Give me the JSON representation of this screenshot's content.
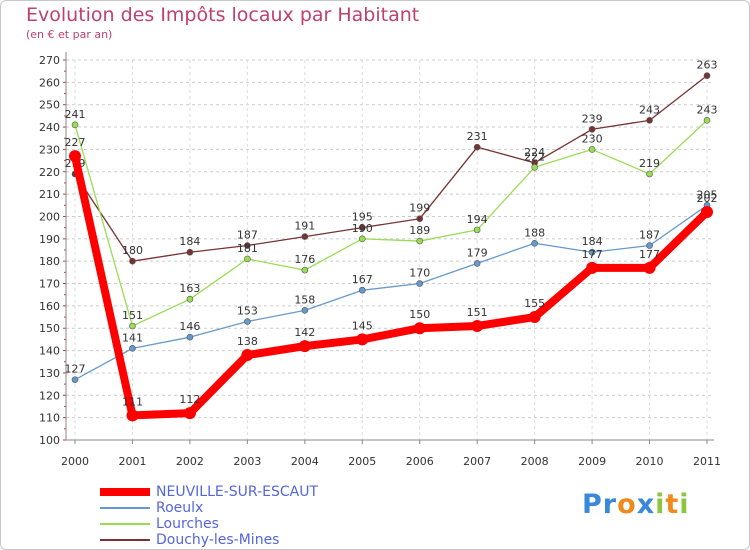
{
  "header": {
    "title": "Evolution des Impôts locaux par Habitant",
    "subtitle": "(en € et par an)"
  },
  "logo": {
    "text": "Proxiti",
    "letters": [
      {
        "ch": "P",
        "color": "#3a88d8"
      },
      {
        "ch": "r",
        "color": "#3a88d8"
      },
      {
        "ch": "o",
        "color": "#f08a1c"
      },
      {
        "ch": "x",
        "color": "#3a88d8"
      },
      {
        "ch": "i",
        "color": "#8cc63f"
      },
      {
        "ch": "t",
        "color": "#f08a1c"
      },
      {
        "ch": "i",
        "color": "#8cc63f"
      }
    ]
  },
  "chart_data": {
    "type": "line",
    "title": "Evolution des Impôts locaux par Habitant",
    "subtitle": "(en € et par an)",
    "xlabel": "",
    "ylabel": "",
    "x": [
      "2000",
      "2001",
      "2002",
      "2003",
      "2004",
      "2005",
      "2006",
      "2007",
      "2008",
      "2009",
      "2010",
      "2011"
    ],
    "ylim": [
      100,
      270
    ],
    "ytick_step": 10,
    "grid": "horizontal-dashed",
    "legend_position": "bottom-left",
    "series": [
      {
        "name": "NEUVILLE-SUR-ESCAUT",
        "color": "#ff0000",
        "emphasis": true,
        "values": [
          227,
          111,
          112,
          138,
          142,
          145,
          150,
          151,
          155,
          177,
          177,
          202
        ],
        "labels": [
          "227",
          "111",
          "112",
          "138",
          "142",
          "145",
          "150",
          "151",
          "155",
          "177",
          "177",
          "202"
        ]
      },
      {
        "name": "Roeulx",
        "color": "#6699cc",
        "emphasis": false,
        "values": [
          127,
          141,
          146,
          153,
          158,
          167,
          170,
          179,
          188,
          184,
          187,
          205
        ],
        "labels": [
          "127",
          "141",
          "146",
          "153",
          "158",
          "167",
          "170",
          "179",
          "188",
          "184",
          "187",
          "205"
        ]
      },
      {
        "name": "Lourches",
        "color": "#99dd55",
        "emphasis": false,
        "values": [
          241,
          151,
          163,
          181,
          176,
          190,
          189,
          194,
          222,
          230,
          219,
          243
        ],
        "labels": [
          "241",
          "151",
          "163",
          "181",
          "176",
          "190",
          "189",
          "194",
          "222",
          "230",
          "219",
          "243"
        ]
      },
      {
        "name": "Douchy-les-Mines",
        "color": "#773333",
        "emphasis": false,
        "values": [
          219,
          180,
          184,
          187,
          191,
          195,
          199,
          231,
          224,
          239,
          243,
          263
        ],
        "labels": [
          "219",
          "180",
          "184",
          "187",
          "191",
          "195",
          "199",
          "231",
          "224",
          "239",
          "243",
          "263"
        ]
      }
    ]
  }
}
